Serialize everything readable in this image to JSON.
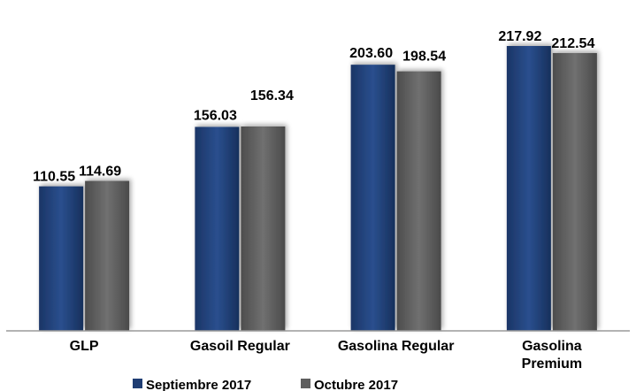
{
  "chart_data": {
    "type": "bar",
    "categories": [
      "GLP",
      "Gasoil Regular",
      "Gasolina Regular",
      "Gasolina Premium"
    ],
    "series": [
      {
        "name": "Septiembre 2017",
        "values": [
          110.55,
          156.03,
          203.6,
          217.92
        ],
        "labels": [
          "110.55",
          "156.03",
          "203.60",
          "217.92"
        ],
        "color": "#1f3d73"
      },
      {
        "name": "Octubre 2017",
        "values": [
          114.69,
          156.34,
          198.54,
          212.54
        ],
        "labels": [
          "114.69",
          "156.34",
          "198.54",
          "212.54"
        ],
        "color": "#5e5e5e"
      }
    ],
    "ylim": [
      0,
      240
    ],
    "grid": false,
    "legend_position": "bottom"
  }
}
